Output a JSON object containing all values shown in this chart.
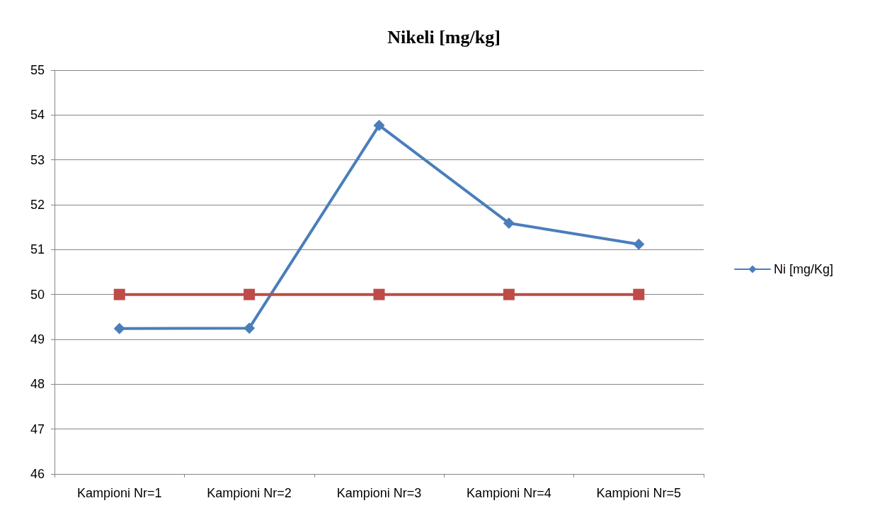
{
  "chart_data": {
    "type": "line",
    "title": "Nikeli [mg/kg]",
    "categories": [
      "Kampioni Nr=1",
      "Kampioni Nr=2",
      "Kampioni Nr=3",
      "Kampioni Nr=4",
      "Kampioni Nr=5"
    ],
    "series": [
      {
        "name": "Ni [mg/Kg]",
        "color": "#4a7ebb",
        "marker": "diamond",
        "values": [
          49.24,
          49.25,
          53.77,
          51.59,
          51.12
        ]
      },
      {
        "color": "#be4b48",
        "marker": "square",
        "values": [
          50,
          50,
          50,
          50,
          50
        ]
      }
    ],
    "ylim": [
      46,
      55
    ],
    "yticks": [
      46,
      47,
      48,
      49,
      50,
      51,
      52,
      53,
      54,
      55
    ],
    "grid": "y",
    "legend": "right"
  }
}
